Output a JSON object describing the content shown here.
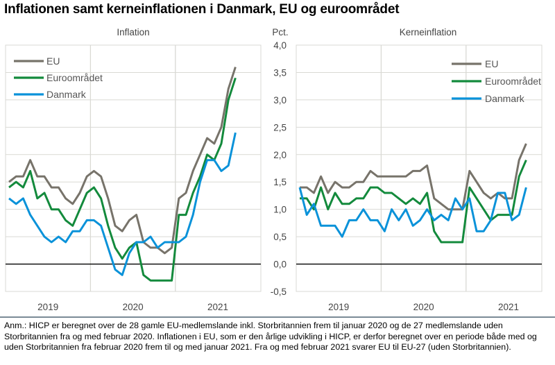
{
  "title": "Inflationen samt kerneinflationen i Danmark, EU og euroområdet",
  "unit_label": "Pct.",
  "note": "Anm.: HICP er beregnet over de 28 gamle EU-medlemslande inkl. Storbritannien frem til januar 2020 og de 27 medlemslande uden Storbritannien fra og med februar 2020. Inflationen i EU, som er den årlige udvikling i HICP, er derfor beregnet over en periode både med og uden Storbritannien fra februar 2020 frem til og med januar 2021. Fra og med februar 2021 svarer EU til EU-27 (uden Storbritannien).",
  "colors": {
    "EU": "#77736a",
    "Euroområdet": "#138a3c",
    "Danmark": "#0a92d9"
  },
  "chart_data": [
    {
      "type": "line",
      "title": "Inflation",
      "x_start": "2019-01",
      "x_end": "2021-09",
      "x_frequency": "monthly",
      "x_tick_labels": [
        "2019",
        "2020",
        "2021"
      ],
      "ylim": [
        -0.5,
        4.0
      ],
      "y_ticks": [
        "-0,5",
        "0,0",
        "0,5",
        "1,0",
        "1,5",
        "2,0",
        "2,5",
        "3,0",
        "3,5",
        "4,0"
      ],
      "grid": true,
      "legend": "top-left",
      "series": [
        {
          "name": "EU",
          "values": [
            1.5,
            1.6,
            1.6,
            1.9,
            1.6,
            1.6,
            1.4,
            1.4,
            1.2,
            1.1,
            1.3,
            1.6,
            1.7,
            1.6,
            1.2,
            0.7,
            0.6,
            0.8,
            0.9,
            0.4,
            0.3,
            0.3,
            0.2,
            0.3,
            1.2,
            1.3,
            1.7,
            2.0,
            2.3,
            2.2,
            2.5,
            3.2,
            3.6
          ]
        },
        {
          "name": "Euroområdet",
          "values": [
            1.4,
            1.5,
            1.4,
            1.7,
            1.2,
            1.3,
            1.0,
            1.0,
            0.8,
            0.7,
            1.0,
            1.3,
            1.4,
            1.2,
            0.7,
            0.3,
            0.1,
            0.3,
            0.4,
            -0.2,
            -0.3,
            -0.3,
            -0.3,
            -0.3,
            0.9,
            0.9,
            1.3,
            1.6,
            2.0,
            1.9,
            2.2,
            3.0,
            3.4
          ]
        },
        {
          "name": "Danmark",
          "values": [
            1.2,
            1.1,
            1.2,
            0.9,
            0.7,
            0.5,
            0.4,
            0.5,
            0.4,
            0.6,
            0.6,
            0.8,
            0.8,
            0.7,
            0.3,
            -0.1,
            -0.2,
            0.2,
            0.4,
            0.4,
            0.5,
            0.3,
            0.4,
            0.4,
            0.4,
            0.5,
            0.9,
            1.5,
            1.9,
            1.9,
            1.7,
            1.8,
            2.4
          ]
        }
      ]
    },
    {
      "type": "line",
      "title": "Kerneinflation",
      "x_start": "2019-01",
      "x_end": "2021-09",
      "x_frequency": "monthly",
      "x_tick_labels": [
        "2019",
        "2020",
        "2021"
      ],
      "ylim": [
        -0.5,
        4.0
      ],
      "y_ticks": [
        "-0,5",
        "0,0",
        "0,5",
        "1,0",
        "1,5",
        "2,0",
        "2,5",
        "3,0",
        "3,5",
        "4,0"
      ],
      "grid": true,
      "legend": "top-right",
      "series": [
        {
          "name": "EU",
          "values": [
            1.4,
            1.4,
            1.3,
            1.6,
            1.3,
            1.5,
            1.4,
            1.4,
            1.5,
            1.5,
            1.7,
            1.6,
            1.6,
            1.6,
            1.6,
            1.6,
            1.7,
            1.7,
            1.8,
            1.2,
            1.1,
            1.0,
            1.0,
            1.0,
            1.7,
            1.5,
            1.3,
            1.2,
            1.3,
            1.2,
            1.2,
            1.9,
            2.2
          ]
        },
        {
          "name": "Euroområdet",
          "values": [
            1.2,
            1.2,
            1.0,
            1.4,
            1.0,
            1.3,
            1.1,
            1.1,
            1.2,
            1.2,
            1.4,
            1.4,
            1.3,
            1.3,
            1.2,
            1.1,
            1.2,
            1.1,
            1.3,
            0.6,
            0.4,
            0.4,
            0.4,
            0.4,
            1.4,
            1.2,
            1.0,
            0.8,
            0.9,
            0.9,
            0.9,
            1.6,
            1.9
          ]
        },
        {
          "name": "Danmark",
          "values": [
            1.4,
            0.9,
            1.1,
            0.7,
            0.7,
            0.7,
            0.5,
            0.8,
            0.8,
            1.0,
            0.8,
            0.8,
            0.6,
            1.0,
            0.8,
            1.0,
            0.7,
            0.8,
            1.0,
            0.8,
            0.9,
            0.8,
            1.2,
            1.0,
            1.2,
            0.6,
            0.6,
            0.8,
            1.3,
            1.3,
            0.8,
            0.9,
            1.4
          ]
        }
      ]
    }
  ]
}
